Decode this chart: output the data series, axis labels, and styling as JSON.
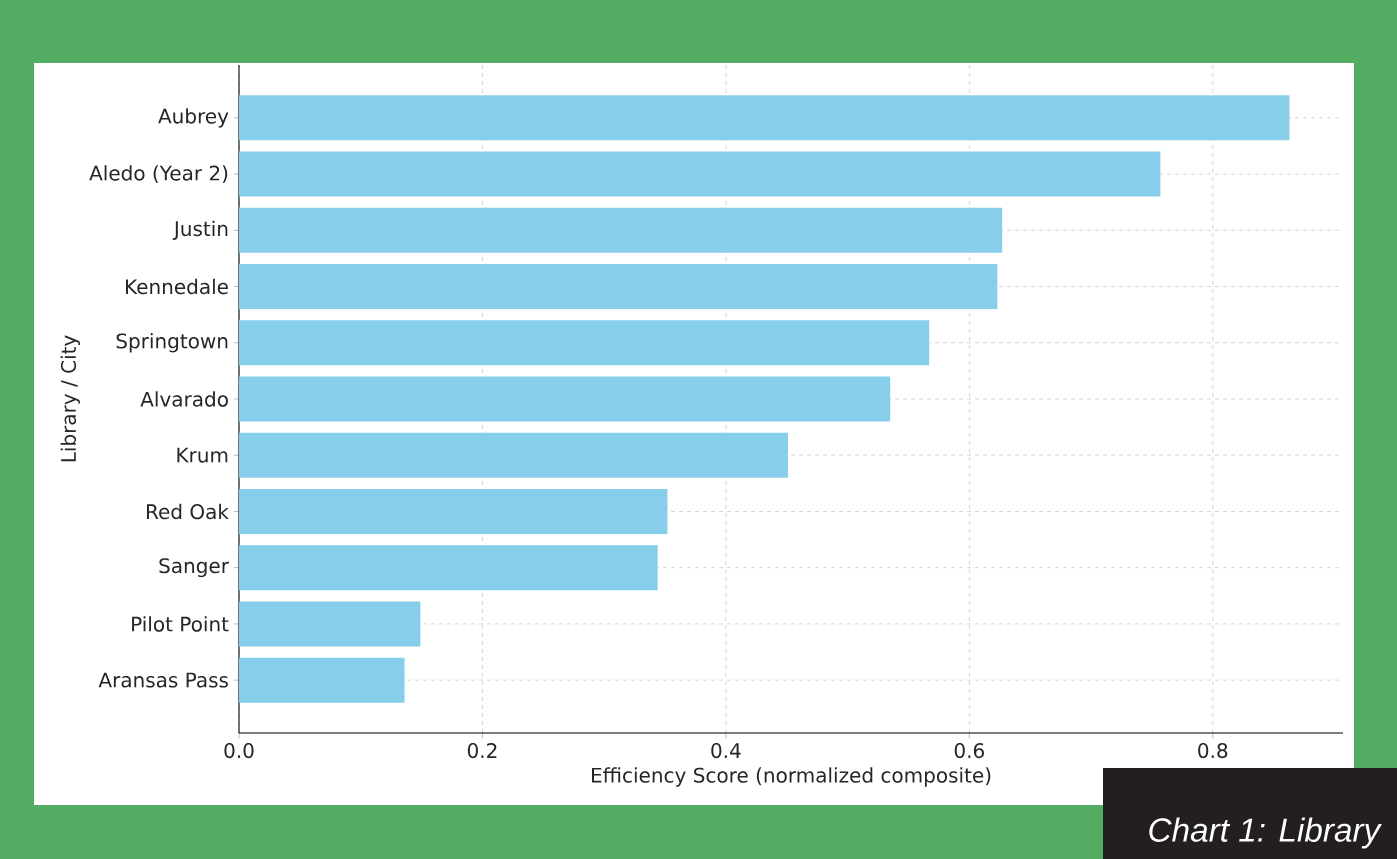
{
  "chart_data": {
    "type": "bar",
    "orientation": "horizontal",
    "xlabel": "Efficiency Score (normalized composite)",
    "ylabel": "Library / City",
    "categories": [
      "Aubrey",
      "Aledo (Year 2)",
      "Justin",
      "Kennedale",
      "Springtown",
      "Alvarado",
      "Krum",
      "Red Oak",
      "Sanger",
      "Pilot Point",
      "Aransas Pass"
    ],
    "values": [
      0.863,
      0.757,
      0.627,
      0.623,
      0.567,
      0.535,
      0.451,
      0.352,
      0.344,
      0.149,
      0.136
    ],
    "color": "#87ceeb",
    "xlim": [
      0,
      0.907
    ],
    "xticks": [
      {
        "value": 0,
        "label": "0.0"
      },
      0.2,
      0.4,
      0.6,
      0.8
    ],
    "grid": true,
    "annotations": [
      "Chart 1: Library"
    ]
  }
}
